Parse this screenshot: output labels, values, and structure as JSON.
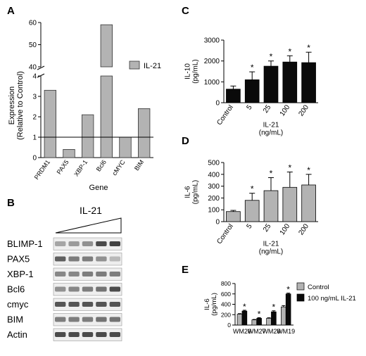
{
  "panels": {
    "A": {
      "letter": "A"
    },
    "B": {
      "letter": "B"
    },
    "C": {
      "letter": "C"
    },
    "D": {
      "letter": "D"
    },
    "E": {
      "letter": "E"
    }
  },
  "western_blot": {
    "treatment_label": "IL-21",
    "rows": [
      "BLIMP-1",
      "PAX5",
      "XBP-1",
      "Bcl6",
      "cmyc",
      "BIM",
      "Actin"
    ],
    "band_intensity": [
      [
        0.35,
        0.4,
        0.45,
        0.8,
        0.85
      ],
      [
        0.7,
        0.55,
        0.55,
        0.45,
        0.25
      ],
      [
        0.5,
        0.5,
        0.55,
        0.55,
        0.55
      ],
      [
        0.45,
        0.5,
        0.55,
        0.6,
        0.8
      ],
      [
        0.75,
        0.75,
        0.75,
        0.75,
        0.75
      ],
      [
        0.55,
        0.55,
        0.55,
        0.6,
        0.6
      ],
      [
        0.8,
        0.8,
        0.8,
        0.8,
        0.8
      ]
    ]
  },
  "chart_data": [
    {
      "panel": "A",
      "type": "bar",
      "categories": [
        "PRDM1",
        "PAX5",
        "XBP-1",
        "Bcl6",
        "cMYC",
        "BIM"
      ],
      "series": [
        {
          "name": "IL-21",
          "values": [
            3.3,
            0.4,
            2.1,
            59,
            1.0,
            2.4
          ]
        }
      ],
      "xlabel": "Gene",
      "ylabel": "Expression\n(Relative to Control)",
      "axis_break": {
        "lower": [
          0,
          4
        ],
        "upper": [
          40,
          60
        ]
      },
      "upper_ticks": [
        "40",
        "50",
        "60"
      ],
      "lower_ticks": [
        "0",
        "1",
        "2",
        "3",
        "4"
      ],
      "reference_line": 1,
      "legend": "right",
      "colors": {
        "bar": "#b3b3b3"
      }
    },
    {
      "panel": "C",
      "type": "bar",
      "categories": [
        "Control",
        "5",
        "25",
        "100",
        "200"
      ],
      "values": [
        650,
        1100,
        1750,
        1950,
        1920
      ],
      "errors": [
        150,
        380,
        250,
        300,
        500
      ],
      "significant": [
        false,
        true,
        true,
        true,
        true
      ],
      "ylabel": "IL-10\n(pg/mL)",
      "xlabel": "IL-21\n(ng/mL)",
      "ylim": [
        0,
        3000
      ],
      "ticks": [
        "0",
        "1000",
        "2000",
        "3000"
      ],
      "colors": {
        "bar": "#0a0a0a"
      }
    },
    {
      "panel": "D",
      "type": "bar",
      "categories": [
        "Control",
        "5",
        "25",
        "100",
        "200"
      ],
      "values": [
        85,
        180,
        262,
        290,
        310
      ],
      "errors": [
        10,
        60,
        110,
        130,
        90
      ],
      "significant": [
        false,
        true,
        true,
        true,
        true
      ],
      "ylabel": "IL-6\n(pg/mL)",
      "xlabel": "IL-21\n(ng/mL)",
      "ylim": [
        0,
        500
      ],
      "ticks": [
        "0",
        "100",
        "200",
        "300",
        "400",
        "500"
      ],
      "colors": {
        "bar": "#b3b3b3"
      }
    },
    {
      "panel": "E",
      "type": "bar",
      "categories": [
        "WM26",
        "WM27",
        "WM28",
        "WM19"
      ],
      "series": [
        {
          "name": "Control",
          "values": [
            210,
            100,
            130,
            350
          ]
        },
        {
          "name": "100  ng/mL IL-21",
          "values": [
            270,
            130,
            255,
            600
          ]
        }
      ],
      "errors": [
        [
          10,
          8,
          10,
          25
        ],
        [
          15,
          12,
          20,
          15
        ]
      ],
      "significant": [
        true,
        true,
        true,
        true
      ],
      "ylabel": "IL-6\n(pg/mL)",
      "ylim": [
        0,
        800
      ],
      "ticks": [
        "0",
        "200",
        "400",
        "600",
        "800"
      ],
      "legend": "top-right",
      "colors": {
        "Control": "#b3b3b3",
        "100  ng/mL IL-21": "#0a0a0a"
      }
    }
  ]
}
